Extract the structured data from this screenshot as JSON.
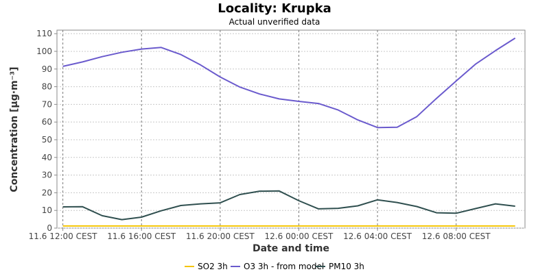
{
  "chart_data": {
    "type": "line",
    "title": "Locality: Krupka",
    "subtitle": "Actual unverified data",
    "xlabel": "Date and time",
    "ylabel": "Concentration [µg·m⁻³]",
    "ylim": [
      0,
      112
    ],
    "yticks": [
      0,
      10,
      20,
      30,
      40,
      50,
      60,
      70,
      80,
      90,
      100,
      110
    ],
    "xlim": [
      -0.3,
      23.5
    ],
    "xticks": [
      {
        "x": 0,
        "label": "11.6 12:00 CEST"
      },
      {
        "x": 4,
        "label": "11.6 16:00 CEST"
      },
      {
        "x": 8,
        "label": "11.6 20:00 CEST"
      },
      {
        "x": 12,
        "label": "12.6 00:00 CEST"
      },
      {
        "x": 16,
        "label": "12.6 04:00 CEST"
      },
      {
        "x": 20,
        "label": "12.6 08:00 CEST"
      }
    ],
    "x": [
      0,
      1,
      2,
      3,
      4,
      5,
      6,
      7,
      8,
      9,
      10,
      11,
      12,
      13,
      14,
      15,
      16,
      17,
      18,
      19,
      20,
      21,
      22,
      23
    ],
    "grid": true,
    "legend_position": "bottom",
    "series": [
      {
        "name": "SO2 3h",
        "color": "#f5c400",
        "values": [
          1.2,
          1.2,
          1.2,
          1.2,
          1.2,
          1.2,
          1.2,
          1.2,
          1.2,
          1.2,
          1.2,
          1.2,
          1.2,
          1.2,
          1.2,
          1.2,
          1.2,
          1.2,
          1.2,
          1.2,
          1.2,
          1.2,
          1.2,
          1.2
        ]
      },
      {
        "name": "O3 3h - from model",
        "color": "#6a5acd",
        "values": [
          91.5,
          94,
          97,
          99.5,
          101.3,
          102.2,
          98.2,
          92.3,
          85.5,
          79.8,
          75.9,
          73.1,
          71.7,
          70.5,
          66.8,
          61.2,
          56.9,
          57.1,
          63.1,
          73.4,
          83.2,
          92.9,
          100.4,
          107.5
        ]
      },
      {
        "name": "PM10 3h",
        "color": "#2f4f4f",
        "values": [
          12,
          12.1,
          7.0,
          4.8,
          6.2,
          9.8,
          12.8,
          13.7,
          14.3,
          19.0,
          20.9,
          21.0,
          15.5,
          10.9,
          11.2,
          12.6,
          16.0,
          14.5,
          12.2,
          8.7,
          8.4,
          11.1,
          13.7,
          12.4
        ]
      }
    ]
  }
}
